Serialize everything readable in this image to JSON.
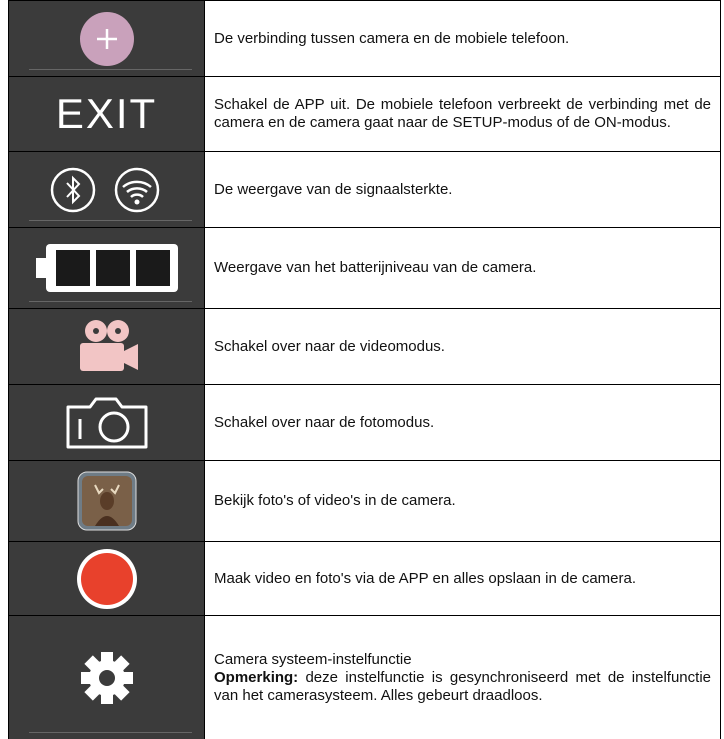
{
  "rows": [
    {
      "description": "De verbinding tussen camera en de mobiele telefoon."
    },
    {
      "icon_label": "EXIT",
      "description": "Schakel de APP uit. De mobiele telefoon verbreekt de verbinding met de camera en de camera gaat naar de SETUP-modus of de ON-modus."
    },
    {
      "description": "De weergave van de signaalsterkte."
    },
    {
      "description": "Weergave van het batterijniveau van de camera."
    },
    {
      "description": "Schakel over naar de videomodus."
    },
    {
      "description": "Schakel over naar de fotomodus."
    },
    {
      "description": "Bekijk foto's of video's in de camera."
    },
    {
      "description": "Maak video en foto's via de APP en alles opslaan in de camera."
    },
    {
      "description": "Camera systeem-instelfunctie",
      "note_label": "Opmerking:",
      "note": "deze instelfunctie is gesynchroniseerd met de instelfunctie van het camerasysteem. Alles gebeurt draadloos."
    }
  ]
}
